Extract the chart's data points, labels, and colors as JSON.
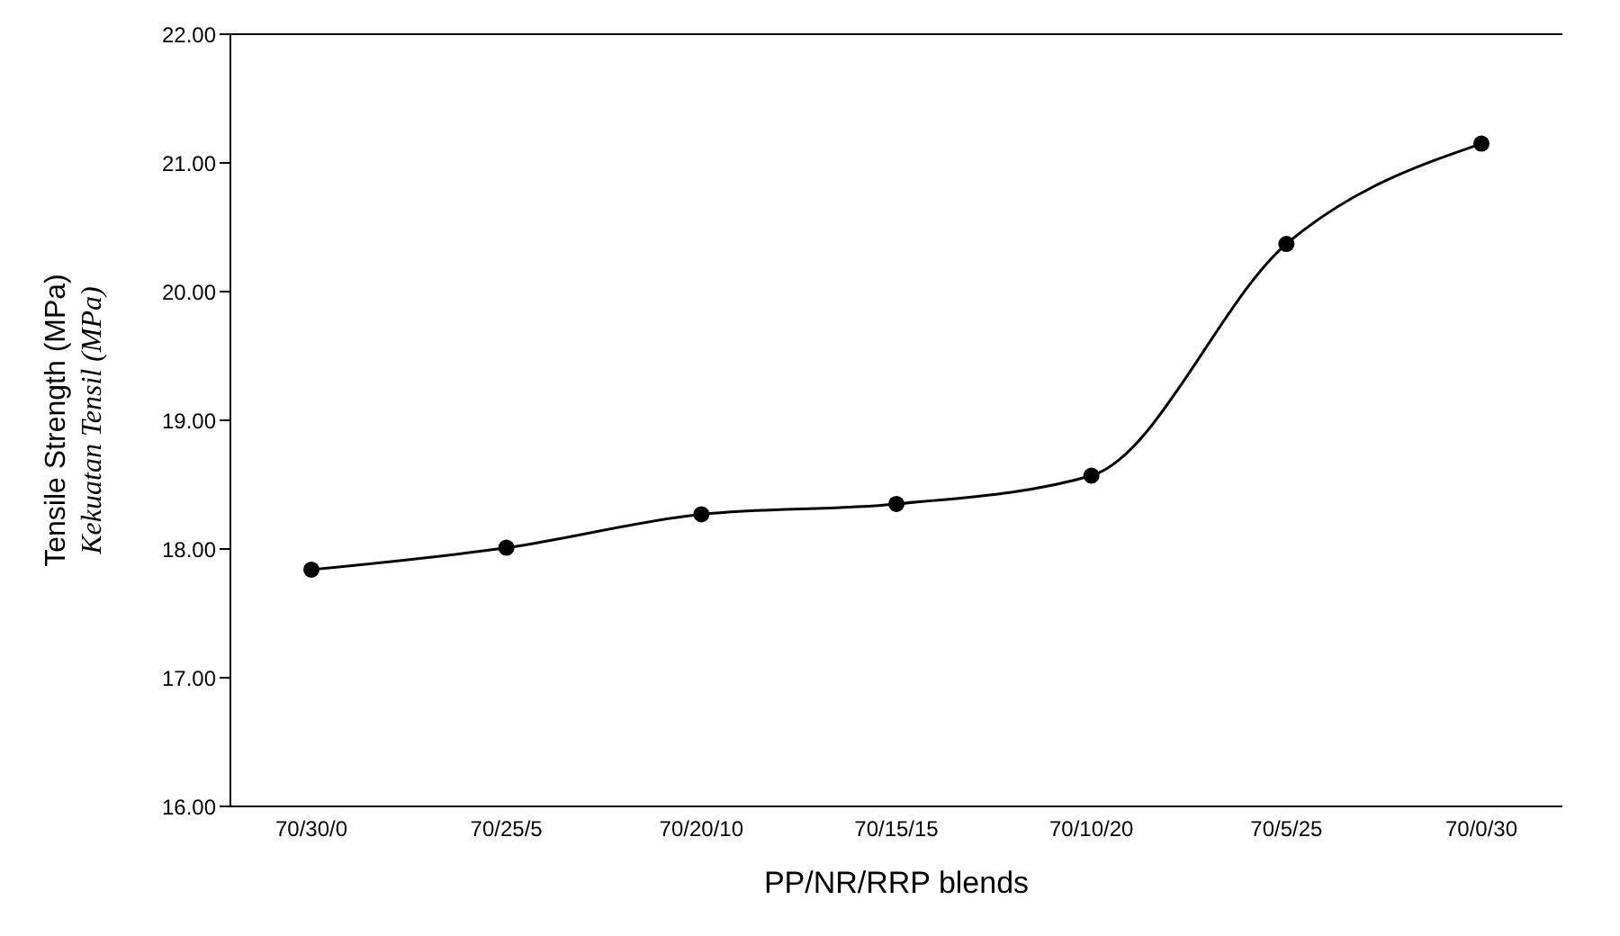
{
  "chart_data": {
    "type": "line",
    "xlabel": "PP/NR/RRP blends",
    "ylabel": "Tensile Strength (MPa)\nKekuatan Tensil (MPa)",
    "categories": [
      "70/30/0",
      "70/25/5",
      "70/20/10",
      "70/15/15",
      "70/10/20",
      "70/5/25",
      "70/0/30"
    ],
    "series": [
      {
        "color": "#000000",
        "values": [
          17.84,
          18.01,
          18.27,
          18.35,
          18.57,
          20.37,
          21.15
        ]
      }
    ],
    "ylim": [
      16,
      22
    ],
    "yticks": [
      {
        "value": 16,
        "label": "16.00"
      },
      {
        "value": 17,
        "label": "17.00"
      },
      {
        "value": 18,
        "label": "18.00"
      },
      {
        "value": 19,
        "label": "19.00"
      },
      {
        "value": 20,
        "label": "20.00"
      },
      {
        "value": 21,
        "label": "21.00"
      },
      {
        "value": 22,
        "label": "22.00"
      }
    ],
    "marker": "circle",
    "line_style": "solid",
    "grid": false,
    "legend": false
  }
}
